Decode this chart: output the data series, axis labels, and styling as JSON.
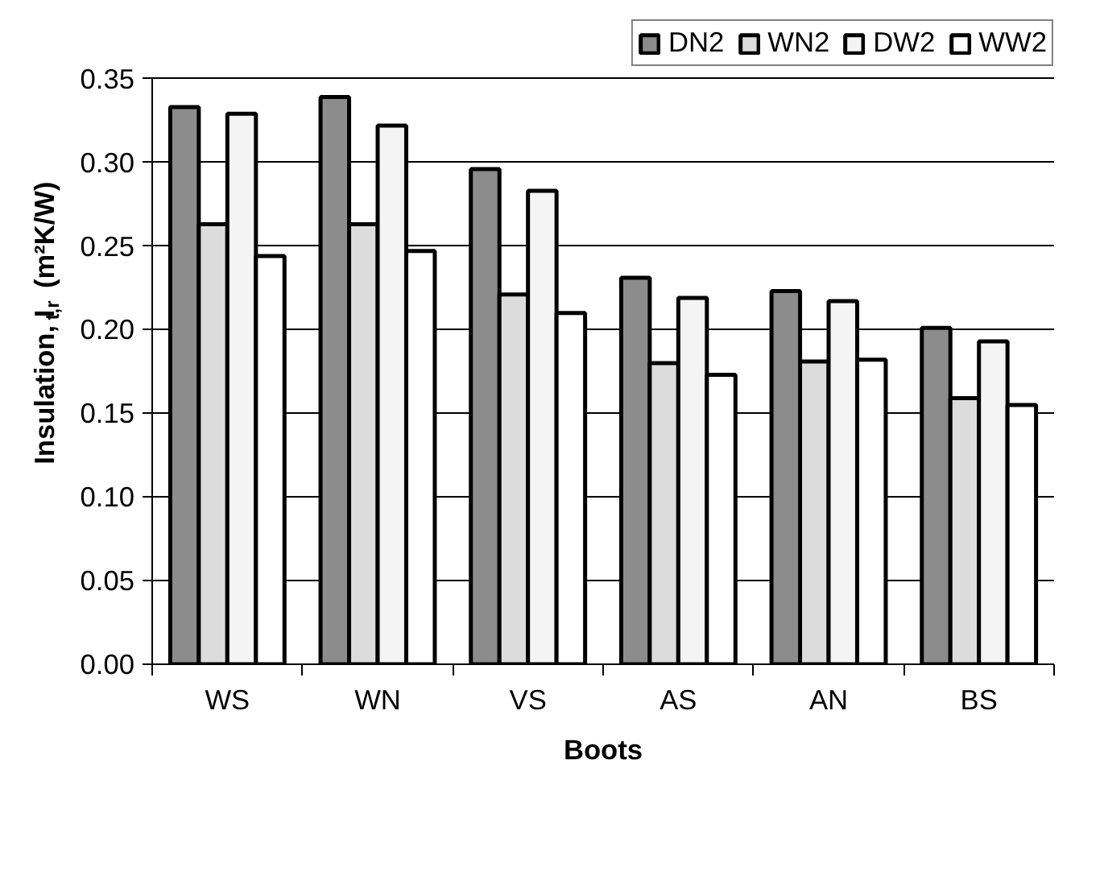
{
  "chart_data": {
    "type": "bar",
    "xlabel": "Boots",
    "ylabel": "Insulation, I$_{t,r}$ (m²K/W)",
    "categories": [
      "WS",
      "WN",
      "VS",
      "AS",
      "AN",
      "BS"
    ],
    "series": [
      {
        "name": "DN2",
        "color": "#8c8c8c",
        "values": [
          0.333,
          0.339,
          0.296,
          0.231,
          0.223,
          0.201
        ]
      },
      {
        "name": "WN2",
        "color": "#dcdcdc",
        "values": [
          0.263,
          0.263,
          0.221,
          0.18,
          0.181,
          0.159
        ]
      },
      {
        "name": "DW2",
        "color": "#f4f4f4",
        "values": [
          0.329,
          0.322,
          0.283,
          0.219,
          0.217,
          0.193
        ]
      },
      {
        "name": "WW2",
        "color": "#ffffff",
        "values": [
          0.244,
          0.247,
          0.21,
          0.173,
          0.182,
          0.155
        ]
      }
    ],
    "ylim": [
      0,
      0.35
    ],
    "yticks": [
      {
        "value": 0,
        "label": "0.00"
      },
      0.05,
      {
        "value": 0.1,
        "label": "0.10"
      },
      0.15,
      {
        "value": 0.2,
        "label": "0.20"
      },
      0.25,
      {
        "value": 0.3,
        "label": "0.30"
      },
      0.35
    ],
    "grid": "y",
    "legend": "top right"
  }
}
